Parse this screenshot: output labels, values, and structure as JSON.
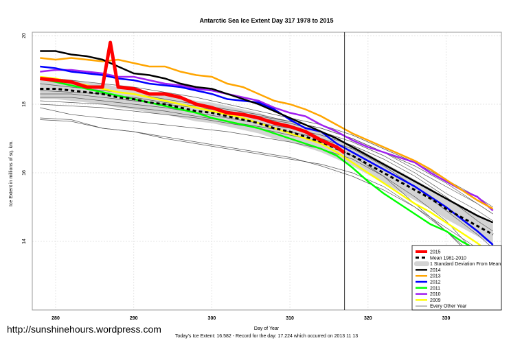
{
  "chart_data": {
    "type": "line",
    "title": "Antarctic Sea Ice Extent Day 317 1978 to 2015",
    "xlabel": "Day of Year",
    "ylabel": "Ice Extent in millions of sq. km.",
    "subtitle": "Today's Ice Extent: 16.582  - Record for the day: 17.224 which occurred on 2013 11 13",
    "watermark": "http://sunshinehours.wordpress.com",
    "xlim": [
      277,
      337
    ],
    "ylim": [
      12,
      20.2
    ],
    "xticks": [
      280,
      290,
      300,
      310,
      320,
      330
    ],
    "yticks": [
      14,
      16,
      18,
      20
    ],
    "grid": true,
    "current_day_marker": 317,
    "legend_position": "bottom-right",
    "x": [
      278,
      280,
      282,
      284,
      286,
      288,
      290,
      292,
      294,
      296,
      298,
      300,
      302,
      304,
      306,
      308,
      310,
      312,
      314,
      316,
      318,
      320,
      322,
      324,
      326,
      328,
      330,
      332,
      334,
      336
    ],
    "mean_sd": 0.3,
    "series": [
      {
        "name": "Mean 1981-2010",
        "color": "#000000",
        "style": "dashed",
        "values": [
          18.45,
          18.45,
          18.4,
          18.35,
          18.3,
          18.2,
          18.15,
          18.05,
          18.0,
          17.9,
          17.8,
          17.75,
          17.65,
          17.55,
          17.45,
          17.3,
          17.2,
          17.05,
          16.9,
          16.7,
          16.5,
          16.25,
          16.0,
          15.75,
          15.5,
          15.25,
          14.95,
          14.7,
          14.45,
          14.2
        ]
      },
      {
        "name": "2014",
        "color": "#000000",
        "values": [
          19.55,
          19.55,
          19.45,
          19.4,
          19.3,
          19.1,
          18.9,
          18.85,
          18.75,
          18.6,
          18.5,
          18.45,
          18.3,
          18.15,
          18.0,
          17.8,
          17.6,
          17.4,
          17.2,
          17.0,
          16.75,
          16.5,
          16.25,
          16.0,
          15.75,
          15.5,
          15.25,
          15.0,
          14.75,
          14.55
        ]
      },
      {
        "name": "2013",
        "color": "#FFA500",
        "values": [
          19.35,
          19.3,
          19.35,
          19.3,
          19.25,
          19.3,
          19.2,
          19.1,
          19.1,
          18.95,
          18.85,
          18.8,
          18.6,
          18.5,
          18.3,
          18.1,
          18.0,
          17.85,
          17.65,
          17.4,
          17.15,
          16.95,
          16.75,
          16.55,
          16.35,
          16.1,
          15.8,
          15.5,
          15.2,
          14.95
        ]
      },
      {
        "name": "2012",
        "color": "#0000FF",
        "values": [
          19.1,
          19.05,
          18.95,
          18.9,
          18.85,
          18.75,
          18.7,
          18.6,
          18.55,
          18.5,
          18.4,
          18.3,
          18.15,
          18.1,
          18.05,
          17.85,
          17.55,
          17.3,
          17.2,
          16.85,
          16.6,
          16.35,
          16.1,
          15.85,
          15.6,
          15.3,
          15.0,
          14.65,
          14.3,
          13.9
        ]
      },
      {
        "name": "2011",
        "color": "#00FF00",
        "values": [
          18.75,
          18.65,
          18.55,
          18.45,
          18.35,
          18.25,
          18.15,
          18.05,
          17.95,
          17.85,
          17.75,
          17.6,
          17.5,
          17.4,
          17.3,
          17.15,
          17.0,
          16.85,
          16.7,
          16.5,
          16.15,
          15.75,
          15.4,
          15.1,
          14.8,
          14.5,
          14.3,
          14.0,
          13.75,
          13.5
        ]
      },
      {
        "name": "2010",
        "color": "#A020F0",
        "values": [
          18.95,
          19.0,
          19.0,
          18.95,
          18.9,
          18.8,
          18.8,
          18.7,
          18.6,
          18.55,
          18.45,
          18.4,
          18.3,
          18.2,
          18.1,
          17.9,
          17.75,
          17.65,
          17.4,
          17.2,
          16.95,
          16.75,
          16.6,
          16.45,
          16.3,
          16.0,
          15.75,
          15.5,
          15.3,
          14.9
        ]
      },
      {
        "name": "2009",
        "color": "#FFFF00",
        "values": [
          18.8,
          18.75,
          18.65,
          18.55,
          18.45,
          18.35,
          18.3,
          18.2,
          18.1,
          18.0,
          17.9,
          17.8,
          17.7,
          17.6,
          17.45,
          17.3,
          17.15,
          17.0,
          16.85,
          16.6,
          16.3,
          16.0,
          15.7,
          15.4,
          15.1,
          14.85,
          14.55,
          14.25,
          13.95,
          13.6
        ]
      }
    ],
    "current": {
      "name": "2015",
      "color": "#FF0000",
      "x": [
        278,
        280,
        282,
        284,
        285,
        286,
        287,
        288,
        290,
        292,
        294,
        296,
        298,
        300,
        302,
        304,
        306,
        308,
        310,
        312,
        314,
        316,
        317
      ],
      "values": [
        18.75,
        18.7,
        18.65,
        18.5,
        18.5,
        18.5,
        19.8,
        18.5,
        18.45,
        18.3,
        18.3,
        18.2,
        18.0,
        17.9,
        17.75,
        17.7,
        17.6,
        17.45,
        17.35,
        17.2,
        16.95,
        16.75,
        16.582
      ]
    },
    "other_years": {
      "name": "Every Other Year",
      "color": "#555555",
      "x": [
        278,
        282,
        286,
        290,
        294,
        298,
        302,
        306,
        310,
        314,
        318,
        322,
        326,
        330,
        334,
        336
      ],
      "lines": [
        [
          18.6,
          18.5,
          18.4,
          18.3,
          18.15,
          18.0,
          17.85,
          17.7,
          17.5,
          17.3,
          17.0,
          16.6,
          16.1,
          15.6,
          15.1,
          14.8
        ],
        [
          18.2,
          18.2,
          18.1,
          18.0,
          17.9,
          17.75,
          17.6,
          17.45,
          17.3,
          17.1,
          16.8,
          16.4,
          15.9,
          15.3,
          14.6,
          14.3
        ],
        [
          17.6,
          17.55,
          17.3,
          17.2,
          17.0,
          16.85,
          16.7,
          16.55,
          16.4,
          16.25,
          16.0,
          15.6,
          15.0,
          14.3,
          13.4,
          13.0
        ],
        [
          17.9,
          17.7,
          17.6,
          17.5,
          17.4,
          17.3,
          17.2,
          17.05,
          16.9,
          16.7,
          16.4,
          15.9,
          15.3,
          14.6,
          13.6,
          13.3
        ],
        [
          18.3,
          18.3,
          18.2,
          18.1,
          18.0,
          17.9,
          17.8,
          17.6,
          17.45,
          17.2,
          16.9,
          16.5,
          16.0,
          15.4,
          14.9,
          14.6
        ],
        [
          18.8,
          18.7,
          18.6,
          18.5,
          18.35,
          18.2,
          18.0,
          17.8,
          17.6,
          17.4,
          17.1,
          16.7,
          16.3,
          15.8,
          15.3,
          15.0
        ],
        [
          18.0,
          17.95,
          17.9,
          17.8,
          17.7,
          17.6,
          17.45,
          17.3,
          17.1,
          16.9,
          16.5,
          15.9,
          15.1,
          14.3,
          13.5,
          12.9
        ],
        [
          18.4,
          18.35,
          18.3,
          18.2,
          18.05,
          17.95,
          17.8,
          17.65,
          17.5,
          17.3,
          17.0,
          16.6,
          16.2,
          15.7,
          15.1,
          14.8
        ],
        [
          17.55,
          17.5,
          17.3,
          17.2,
          17.05,
          16.9,
          16.75,
          16.6,
          16.45,
          16.2,
          15.9,
          15.5,
          15.0,
          14.4,
          13.8,
          13.6
        ],
        [
          18.1,
          18.05,
          18.0,
          17.9,
          17.8,
          17.65,
          17.5,
          17.35,
          17.2,
          17.0,
          16.7,
          16.2,
          15.6,
          14.9,
          14.2,
          13.8
        ]
      ]
    },
    "legend": [
      {
        "label": "2015",
        "color": "#FF0000",
        "kind": "thick"
      },
      {
        "label": "Mean 1981-2010",
        "color": "#000000",
        "kind": "dashed"
      },
      {
        "label": "1 Standard Deviation From Mean",
        "color": "#D3D3D3",
        "kind": "band"
      },
      {
        "label": "2014",
        "color": "#000000",
        "kind": "line"
      },
      {
        "label": "2013",
        "color": "#FFA500",
        "kind": "line"
      },
      {
        "label": "2012",
        "color": "#0000FF",
        "kind": "line"
      },
      {
        "label": "2011",
        "color": "#00FF00",
        "kind": "line"
      },
      {
        "label": "2010",
        "color": "#A020F0",
        "kind": "line"
      },
      {
        "label": "2009",
        "color": "#FFFF00",
        "kind": "line"
      },
      {
        "label": "Every Other Year",
        "color": "#555555",
        "kind": "thin"
      }
    ]
  }
}
